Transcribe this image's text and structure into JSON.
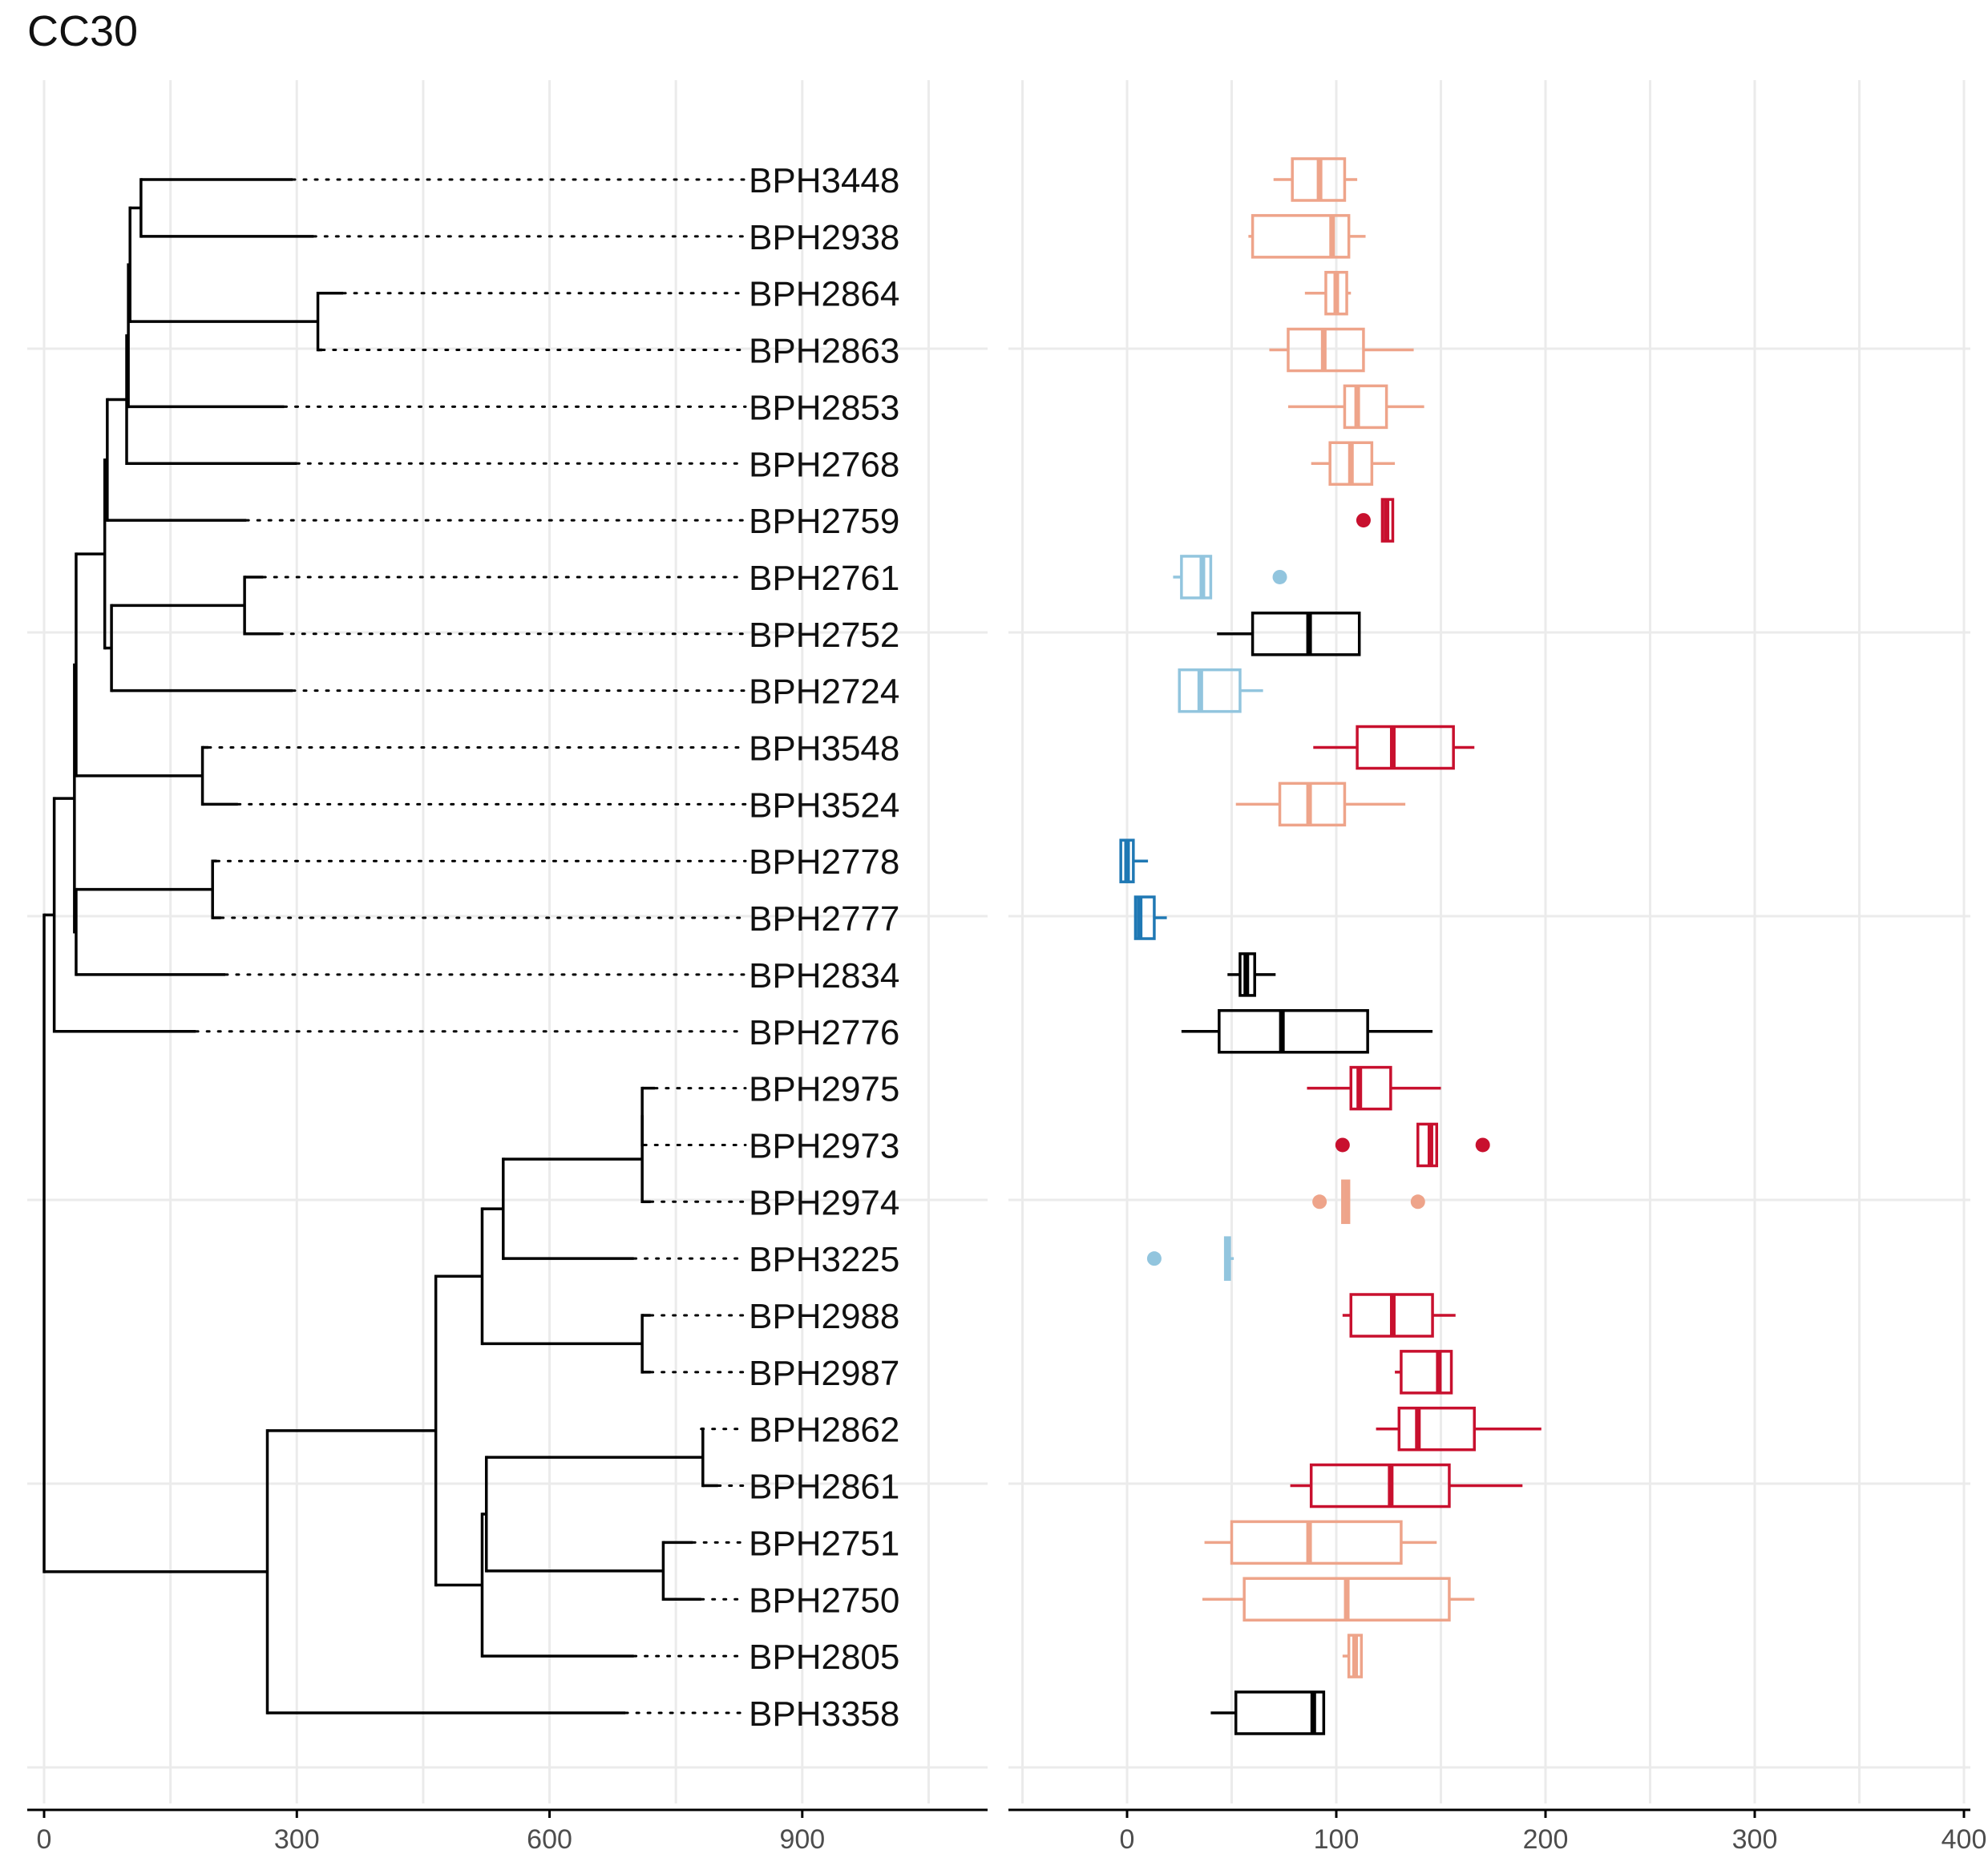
{
  "title": "CC30",
  "colors": {
    "dark_red": "#c8102e",
    "light_red": "#eea48a",
    "light_blue": "#92c5de",
    "dark_blue": "#1f78b4",
    "black": "#000000",
    "grid": "#ebebeb"
  },
  "chart_data": [
    {
      "type": "dendrogram",
      "xlim": [
        -20,
        1120
      ],
      "x_ticks": [
        0,
        300,
        600,
        900
      ],
      "x_tick_labels": [
        "0",
        "300",
        "600",
        "900"
      ],
      "grid": true,
      "leaves": [
        {
          "label": "BPH3448",
          "x": 295
        },
        {
          "label": "BPH2938",
          "x": 320
        },
        {
          "label": "BPH2864",
          "x": 355
        },
        {
          "label": "BPH2863",
          "x": 330
        },
        {
          "label": "BPH2853",
          "x": 285
        },
        {
          "label": "BPH2768",
          "x": 300
        },
        {
          "label": "BPH2759",
          "x": 240
        },
        {
          "label": "BPH2761",
          "x": 260
        },
        {
          "label": "BPH2752",
          "x": 280
        },
        {
          "label": "BPH2724",
          "x": 295
        },
        {
          "label": "BPH3548",
          "x": 195
        },
        {
          "label": "BPH3524",
          "x": 230
        },
        {
          "label": "BPH2778",
          "x": 205
        },
        {
          "label": "BPH2777",
          "x": 210
        },
        {
          "label": "BPH2834",
          "x": 215
        },
        {
          "label": "BPH2776",
          "x": 180
        },
        {
          "label": "BPH2975",
          "x": 725
        },
        {
          "label": "BPH2973",
          "x": 712
        },
        {
          "label": "BPH2974",
          "x": 720
        },
        {
          "label": "BPH3225",
          "x": 700
        },
        {
          "label": "BPH2988",
          "x": 720
        },
        {
          "label": "BPH2987",
          "x": 720
        },
        {
          "label": "BPH2862",
          "x": 780
        },
        {
          "label": "BPH2861",
          "x": 800
        },
        {
          "label": "BPH2751",
          "x": 770
        },
        {
          "label": "BPH2750",
          "x": 780
        },
        {
          "label": "BPH2805",
          "x": 700
        },
        {
          "label": "BPH3358",
          "x": 690
        }
      ],
      "links": [
        {
          "x": 115,
          "a": 0,
          "b": 1
        },
        {
          "x": 325,
          "a": 2,
          "b": 3
        },
        {
          "x": 102,
          "a": 28,
          "b": 29
        },
        {
          "x": 100,
          "a": 30,
          "b": 4
        },
        {
          "x": 98,
          "a": 31,
          "b": 5
        },
        {
          "x": 75,
          "a": 32,
          "b": 6
        },
        {
          "x": 238,
          "a": 7,
          "b": 8
        },
        {
          "x": 80,
          "a": 34,
          "b": 9
        },
        {
          "x": 72,
          "a": 33,
          "b": 35
        },
        {
          "x": 188,
          "a": 10,
          "b": 11
        },
        {
          "x": 38,
          "a": 36,
          "b": 37
        },
        {
          "x": 200,
          "a": 12,
          "b": 13
        },
        {
          "x": 38,
          "a": 39,
          "b": 14
        },
        {
          "x": 36,
          "a": 38,
          "b": 40
        },
        {
          "x": 12,
          "a": 41,
          "b": 15
        },
        {
          "x": 710,
          "a": 16,
          "b": 17
        },
        {
          "x": 710,
          "a": 43,
          "b": 18
        },
        {
          "x": 545,
          "a": 44,
          "b": 19
        },
        {
          "x": 710,
          "a": 20,
          "b": 21
        },
        {
          "x": 520,
          "a": 45,
          "b": 46
        },
        {
          "x": 782,
          "a": 22,
          "b": 23
        },
        {
          "x": 735,
          "a": 24,
          "b": 25
        },
        {
          "x": 525,
          "a": 48,
          "b": 49
        },
        {
          "x": 520,
          "a": 50,
          "b": 26
        },
        {
          "x": 465,
          "a": 47,
          "b": 51
        },
        {
          "x": 265,
          "a": 52,
          "b": 27
        },
        {
          "x": 0,
          "a": 42,
          "b": 53
        }
      ]
    },
    {
      "type": "boxplot",
      "orientation": "horizontal",
      "xlim": [
        -57,
        400
      ],
      "x_ticks": [
        0,
        100,
        200,
        300,
        400
      ],
      "x_tick_labels": [
        "0",
        "100",
        "200",
        "300",
        "400"
      ],
      "grid": true,
      "boxes": [
        {
          "label": "BPH3448",
          "whisker_low": 70,
          "q1": 79,
          "median": 92,
          "q3": 104,
          "whisker_high": 110,
          "outliers": [],
          "color": "light_red"
        },
        {
          "label": "BPH2938",
          "whisker_low": 58,
          "q1": 60,
          "median": 98,
          "q3": 106,
          "whisker_high": 114,
          "outliers": [],
          "color": "light_red"
        },
        {
          "label": "BPH2864",
          "whisker_low": 85,
          "q1": 95,
          "median": 100,
          "q3": 105,
          "whisker_high": 107,
          "outliers": [],
          "color": "light_red"
        },
        {
          "label": "BPH2863",
          "whisker_low": 68,
          "q1": 77,
          "median": 94,
          "q3": 113,
          "whisker_high": 137,
          "outliers": [],
          "color": "light_red"
        },
        {
          "label": "BPH2853",
          "whisker_low": 77,
          "q1": 104,
          "median": 110,
          "q3": 124,
          "whisker_high": 142,
          "outliers": [],
          "color": "light_red"
        },
        {
          "label": "BPH2768",
          "whisker_low": 88,
          "q1": 97,
          "median": 107,
          "q3": 117,
          "whisker_high": 128,
          "outliers": [],
          "color": "light_red"
        },
        {
          "label": "BPH2759",
          "whisker_low": 122,
          "q1": 122,
          "median": 124,
          "q3": 127,
          "whisker_high": 127,
          "outliers": [
            113
          ],
          "color": "dark_red"
        },
        {
          "label": "BPH2761",
          "whisker_low": 22,
          "q1": 26,
          "median": 36,
          "q3": 40,
          "whisker_high": 40,
          "outliers": [
            73
          ],
          "color": "light_blue"
        },
        {
          "label": "BPH2752",
          "whisker_low": 43,
          "q1": 60,
          "median": 87,
          "q3": 111,
          "whisker_high": 111,
          "outliers": [],
          "color": "black"
        },
        {
          "label": "BPH2724",
          "whisker_low": 25,
          "q1": 25,
          "median": 35,
          "q3": 54,
          "whisker_high": 65,
          "outliers": [],
          "color": "light_blue"
        },
        {
          "label": "BPH3548",
          "whisker_low": 89,
          "q1": 110,
          "median": 127,
          "q3": 156,
          "whisker_high": 166,
          "outliers": [],
          "color": "dark_red"
        },
        {
          "label": "BPH3524",
          "whisker_low": 52,
          "q1": 73,
          "median": 87,
          "q3": 104,
          "whisker_high": 133,
          "outliers": [],
          "color": "light_red"
        },
        {
          "label": "BPH2778",
          "whisker_low": -3,
          "q1": -3,
          "median": 0,
          "q3": 3,
          "whisker_high": 10,
          "outliers": [],
          "color": "dark_blue"
        },
        {
          "label": "BPH2777",
          "whisker_low": 4,
          "q1": 4,
          "median": 6,
          "q3": 13,
          "whisker_high": 19,
          "outliers": [],
          "color": "dark_blue"
        },
        {
          "label": "BPH2834",
          "whisker_low": 48,
          "q1": 54,
          "median": 57,
          "q3": 61,
          "whisker_high": 71,
          "outliers": [],
          "color": "black"
        },
        {
          "label": "BPH2776",
          "whisker_low": 26,
          "q1": 44,
          "median": 74,
          "q3": 115,
          "whisker_high": 146,
          "outliers": [],
          "color": "black"
        },
        {
          "label": "BPH2975",
          "whisker_low": 86,
          "q1": 107,
          "median": 111,
          "q3": 126,
          "whisker_high": 150,
          "outliers": [],
          "color": "dark_red"
        },
        {
          "label": "BPH2973",
          "whisker_low": 139,
          "q1": 139,
          "median": 145,
          "q3": 148,
          "whisker_high": 148,
          "outliers": [
            103,
            170
          ],
          "color": "dark_red"
        },
        {
          "label": "BPH2974",
          "whisker_low": 103,
          "q1": 103,
          "median": 105,
          "q3": 106,
          "whisker_high": 106,
          "outliers": [
            92,
            139
          ],
          "color": "light_red"
        },
        {
          "label": "BPH3225",
          "whisker_low": 47,
          "q1": 47,
          "median": 48,
          "q3": 49,
          "whisker_high": 51,
          "outliers": [
            13
          ],
          "color": "light_blue"
        },
        {
          "label": "BPH2988",
          "whisker_low": 103,
          "q1": 107,
          "median": 127,
          "q3": 146,
          "whisker_high": 157,
          "outliers": [],
          "color": "dark_red"
        },
        {
          "label": "BPH2987",
          "whisker_low": 128,
          "q1": 131,
          "median": 149,
          "q3": 155,
          "whisker_high": 155,
          "outliers": [],
          "color": "dark_red"
        },
        {
          "label": "BPH2862",
          "whisker_low": 119,
          "q1": 130,
          "median": 139,
          "q3": 166,
          "whisker_high": 198,
          "outliers": [],
          "color": "dark_red"
        },
        {
          "label": "BPH2861",
          "whisker_low": 78,
          "q1": 88,
          "median": 126,
          "q3": 154,
          "whisker_high": 189,
          "outliers": [],
          "color": "dark_red"
        },
        {
          "label": "BPH2751",
          "whisker_low": 37,
          "q1": 50,
          "median": 87,
          "q3": 131,
          "whisker_high": 148,
          "outliers": [],
          "color": "light_red"
        },
        {
          "label": "BPH2750",
          "whisker_low": 36,
          "q1": 56,
          "median": 105,
          "q3": 154,
          "whisker_high": 166,
          "outliers": [],
          "color": "light_red"
        },
        {
          "label": "BPH2805",
          "whisker_low": 103,
          "q1": 106,
          "median": 109,
          "q3": 112,
          "whisker_high": 112,
          "outliers": [],
          "color": "light_red"
        },
        {
          "label": "BPH3358",
          "whisker_low": 40,
          "q1": 52,
          "median": 89,
          "q3": 94,
          "whisker_high": 94,
          "outliers": [],
          "color": "black"
        }
      ]
    }
  ]
}
